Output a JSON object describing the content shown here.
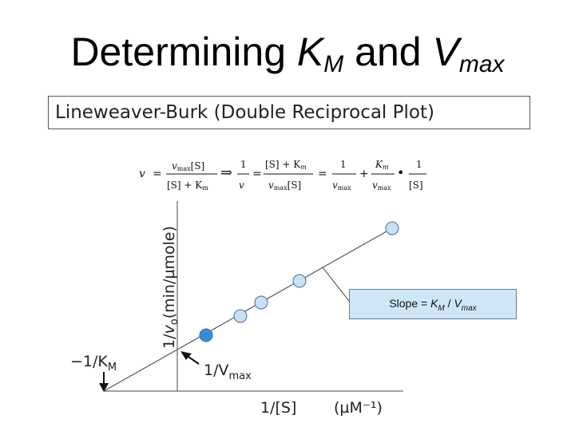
{
  "slide": {
    "title_prefix": "Determining ",
    "title_km_main": "K",
    "title_km_sub": "M",
    "title_and": " and ",
    "title_vmax_main": "V",
    "title_vmax_sub": "max",
    "subtitle": "Lineweaver-Burk (Double Reciprocal Plot)"
  },
  "slope_label": {
    "prefix": "Slope = ",
    "km_main": "K",
    "km_sub": "M",
    "divider": " / ",
    "vmax_main": "V",
    "vmax_sub": "max"
  },
  "plot": {
    "y_axis_label_prefix": "1/",
    "y_axis_label_v": "v",
    "y_axis_label_sub": "o",
    "y_axis_label_suffix": "(min/µmole)",
    "x_axis_label": "1/[S]",
    "x_axis_unit": "(µM⁻¹)",
    "x_intercept_label_prefix": "−1/K",
    "x_intercept_label_sub": "M",
    "y_intercept_label_prefix": "1/V",
    "y_intercept_label_sub": "max",
    "point_color_light": "#c8e0f5",
    "point_color_dark": "#2f8fdc",
    "points": [
      {
        "name": "point-1",
        "shade": "dark"
      },
      {
        "name": "point-2",
        "shade": "light"
      },
      {
        "name": "point-3",
        "shade": "light"
      },
      {
        "name": "point-4",
        "shade": "light"
      },
      {
        "name": "point-5",
        "shade": "light"
      }
    ]
  },
  "equation": {
    "v": "v",
    "eq": "=",
    "vmax_S": "v",
    "vmax_sub": "max",
    "S_bracket": "[S]",
    "denom1": "[S] + K",
    "denom1_sub": "m",
    "arrow": "⇒",
    "one": "1",
    "num2": "[S] + K",
    "num2_sub": "m",
    "K_m": "K",
    "K_m_sub": "m",
    "plus": "+",
    "dot": "•"
  }
}
